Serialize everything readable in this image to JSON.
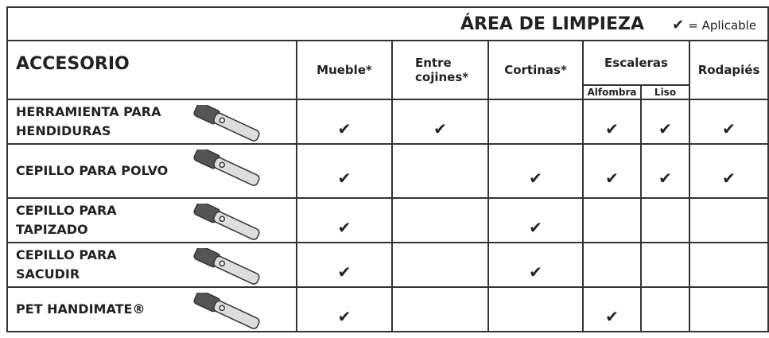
{
  "header": {
    "title": "ÁREA DE LIMPIEZA",
    "legend_symbol": "✔",
    "legend_text": "= Aplicable"
  },
  "table": {
    "corner": "ACCESORIO",
    "columns": [
      "Mueble*",
      "Entre cojines*",
      "Cortinas*",
      "Escaleras",
      "Rodapiés"
    ],
    "subcolumns": [
      "Alfombra",
      "Liso"
    ],
    "rows": [
      {
        "name": "HERRAMIENTA PARA HENDIDURAS",
        "cells": [
          "✔",
          "✔",
          null,
          "✔",
          "✔",
          "✔"
        ]
      },
      {
        "name": "CEPILLO PARA POLVO",
        "cells": [
          "✔",
          null,
          "✔",
          "✔",
          "✔",
          "✔"
        ]
      },
      {
        "name": "CEPILLO PARA TAPIZADO",
        "cells": [
          "✔",
          null,
          "✔",
          null,
          null,
          null
        ]
      },
      {
        "name": "CEPILLO PARA SACUDIR",
        "cells": [
          "✔",
          null,
          "✔",
          null,
          null,
          null
        ]
      },
      {
        "name": "PET HANDIMATE®",
        "cells": [
          "✔",
          null,
          null,
          "✔",
          null,
          null
        ]
      }
    ]
  }
}
